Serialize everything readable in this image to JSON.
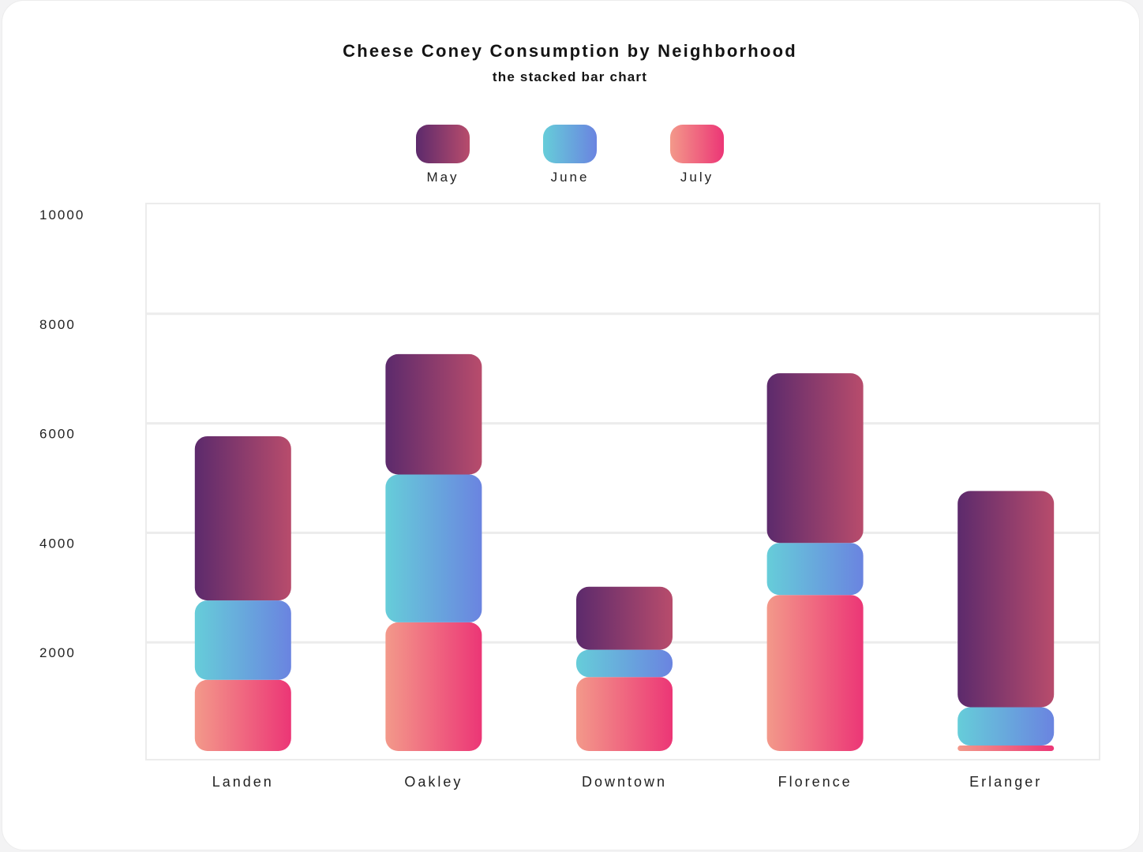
{
  "chart_data": {
    "type": "bar",
    "stacked": true,
    "title": "Cheese Coney Consumption by Neighborhood",
    "subtitle": "the stacked bar chart",
    "categories": [
      "Landen",
      "Oakley",
      "Downtown",
      "Florence",
      "Erlanger"
    ],
    "series": [
      {
        "name": "July",
        "values": [
          1300,
          2350,
          1350,
          2850,
          100
        ],
        "color_from": "#f3998a",
        "color_to": "#ec3676"
      },
      {
        "name": "June",
        "values": [
          1450,
          2700,
          500,
          950,
          700
        ],
        "color_from": "#66cdd9",
        "color_to": "#6a84e0"
      },
      {
        "name": "May",
        "values": [
          3000,
          2200,
          1150,
          3100,
          3950
        ],
        "color_from": "#5c2a6c",
        "color_to": "#b84c6c"
      }
    ],
    "legend_order": [
      "May",
      "June",
      "July"
    ],
    "ylim": [
      0,
      10000
    ],
    "yticks": [
      2000,
      4000,
      6000,
      8000,
      10000
    ],
    "grid": true,
    "legend_position": "top-center"
  }
}
